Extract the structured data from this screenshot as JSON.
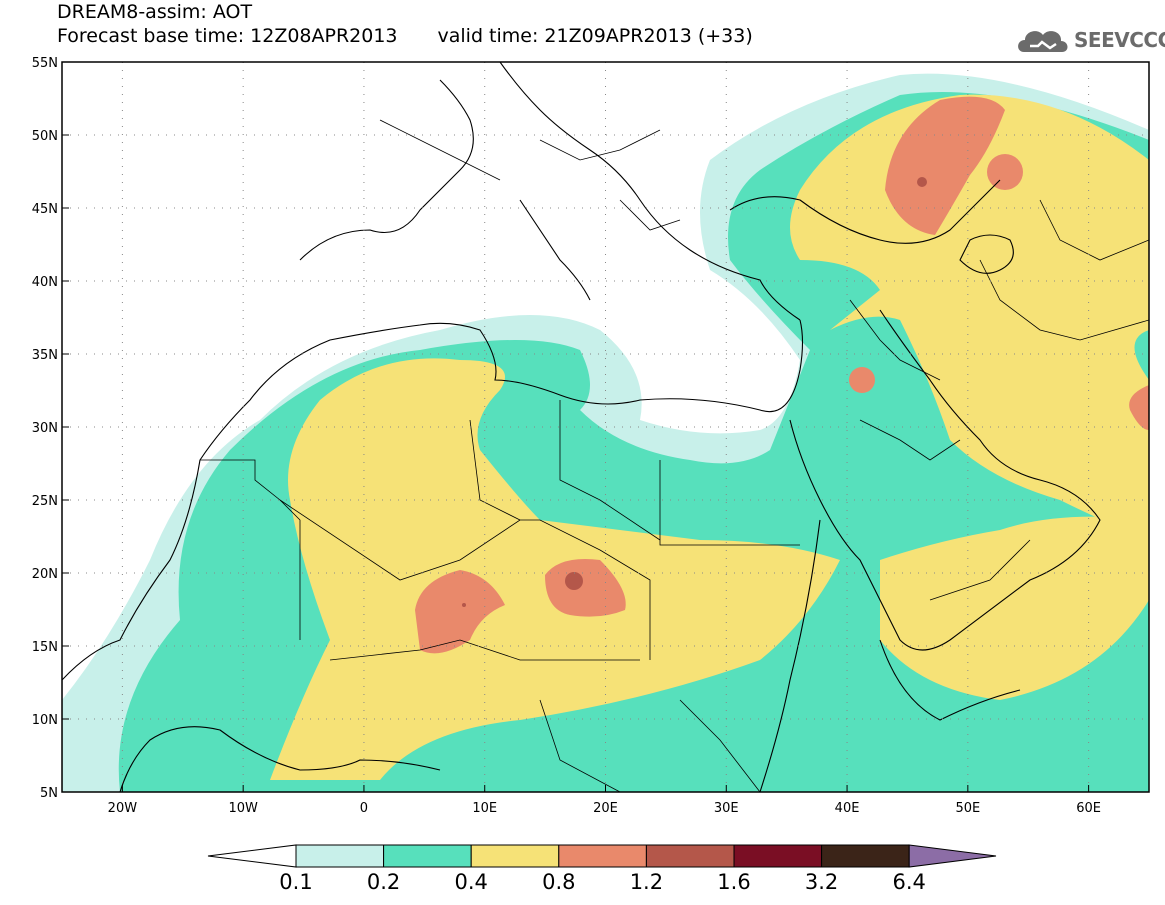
{
  "header": {
    "title_line1": "DREAM8-assim: AOT",
    "base_time": "Forecast base time: 12Z08APR2013",
    "valid_time": "valid time: 21Z09APR2013 (+33)"
  },
  "logo": {
    "text": "SEEVCCC",
    "icon": "cloud-icon"
  },
  "map": {
    "lat_labels": [
      "55N",
      "50N",
      "45N",
      "40N",
      "35N",
      "30N",
      "25N",
      "20N",
      "15N",
      "10N",
      "5N"
    ],
    "lon_labels": [
      "20W",
      "10W",
      "0",
      "10E",
      "20E",
      "30E",
      "40E",
      "50E",
      "60E"
    ],
    "grid": "dotted",
    "lat_range": [
      5,
      55
    ],
    "lon_range": [
      -25,
      65
    ]
  },
  "legend": {
    "levels": [
      "0.1",
      "0.2",
      "0.4",
      "0.8",
      "1.2",
      "1.6",
      "3.2",
      "6.4"
    ],
    "colors": [
      "#ffffff",
      "#c8f0ea",
      "#57e0bc",
      "#f6e277",
      "#e9896b",
      "#b4574a",
      "#7a0e24",
      "#3b2418",
      "#8c6da6"
    ]
  }
}
